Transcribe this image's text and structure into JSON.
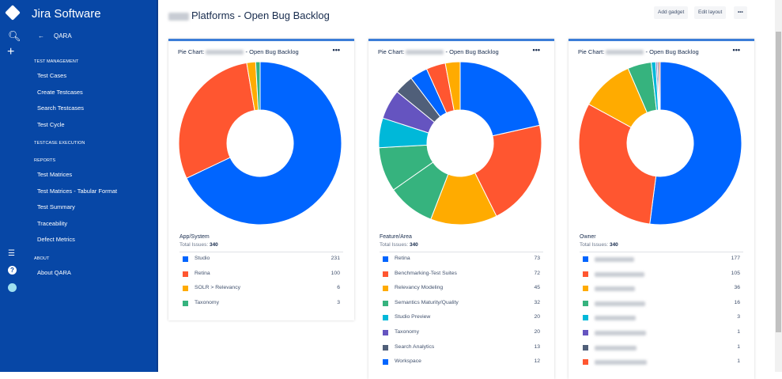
{
  "app": {
    "name": "Jira Software",
    "project": "QARA"
  },
  "sidebar": {
    "sections": [
      {
        "title": "TEST MANAGEMENT",
        "items": [
          "Test Cases",
          "Create Testcases",
          "Search Testcases",
          "Test Cycle"
        ]
      },
      {
        "title": "TESTCASE EXECUTION",
        "items": []
      },
      {
        "title": "REPORTS",
        "items": [
          "Test Matrices",
          "Test Matrices - Tabular Format",
          "Test Summary",
          "Traceability",
          "Defect Metrics"
        ]
      },
      {
        "title": "ABOUT",
        "items": [
          "About QARA"
        ]
      }
    ]
  },
  "page": {
    "title": "Platforms - Open Bug Backlog",
    "add_gadget": "Add gadget",
    "edit_layout": "Edit layout",
    "more": "•••"
  },
  "chart_data": [
    {
      "type": "pie",
      "title_prefix": "Pie Chart:",
      "title_suffix": "- Open Bug Backlog",
      "category": "App/System",
      "total_label": "Total Issues:",
      "total": 340,
      "legend": [
        {
          "label": "Studio",
          "value": 231,
          "color": "#0065ff"
        },
        {
          "label": "Retina",
          "value": 100,
          "color": "#ff5630"
        },
        {
          "label": "SOLR > Relevancy",
          "value": 6,
          "color": "#ffab00"
        },
        {
          "label": "Taxonomy",
          "value": 3,
          "color": "#36b37e"
        }
      ],
      "slices": [
        {
          "value": 231,
          "color": "#0065ff"
        },
        {
          "value": 100,
          "color": "#ff5630"
        },
        {
          "value": 6,
          "color": "#ffab00"
        },
        {
          "value": 3,
          "color": "#36b37e"
        }
      ]
    },
    {
      "type": "pie",
      "title_prefix": "Pie Chart:",
      "title_suffix": "- Open Bug Backlog",
      "category": "Feature/Area",
      "total_label": "Total Issues:",
      "total": 340,
      "legend": [
        {
          "label": "Retina",
          "value": 73,
          "color": "#0065ff"
        },
        {
          "label": "Benchmarking-Test Suites",
          "value": 72,
          "color": "#ff5630"
        },
        {
          "label": "Relevancy Modeling",
          "value": 45,
          "color": "#ffab00"
        },
        {
          "label": "Semantics Maturity/Quality",
          "value": 32,
          "color": "#36b37e"
        },
        {
          "label": "Studio Preview",
          "value": 20,
          "color": "#00b8d9"
        },
        {
          "label": "Taxonomy",
          "value": 20,
          "color": "#6554c0"
        },
        {
          "label": "Search Analytics",
          "value": 13,
          "color": "#505f79"
        },
        {
          "label": "Workspace",
          "value": 12,
          "color": "#0065ff"
        }
      ],
      "slices": [
        {
          "value": 73,
          "color": "#0065ff"
        },
        {
          "value": 72,
          "color": "#ff5630"
        },
        {
          "value": 45,
          "color": "#ffab00"
        },
        {
          "value": 32,
          "color": "#36b37e"
        },
        {
          "value": 30,
          "color": "#36b37e"
        },
        {
          "value": 20,
          "color": "#00b8d9"
        },
        {
          "value": 20,
          "color": "#6554c0"
        },
        {
          "value": 13,
          "color": "#505f79"
        },
        {
          "value": 12,
          "color": "#0065ff"
        },
        {
          "value": 13,
          "color": "#ff5630"
        },
        {
          "value": 10,
          "color": "#ffab00"
        }
      ]
    },
    {
      "type": "pie",
      "title_prefix": "Pie Chart:",
      "title_suffix": "- Open Bug Backlog",
      "category": "Owner",
      "total_label": "Total Issues:",
      "total": 340,
      "legend": [
        {
          "value": 177,
          "color": "#0065ff"
        },
        {
          "value": 105,
          "color": "#ff5630"
        },
        {
          "value": 36,
          "color": "#ffab00"
        },
        {
          "value": 16,
          "color": "#36b37e"
        },
        {
          "value": 3,
          "color": "#00b8d9"
        },
        {
          "value": 1,
          "color": "#6554c0"
        },
        {
          "value": 1,
          "color": "#505f79"
        },
        {
          "value": 1,
          "color": "#ff5630"
        }
      ],
      "slices": [
        {
          "value": 177,
          "color": "#0065ff"
        },
        {
          "value": 105,
          "color": "#ff5630"
        },
        {
          "value": 36,
          "color": "#ffab00"
        },
        {
          "value": 16,
          "color": "#36b37e"
        },
        {
          "value": 3,
          "color": "#00b8d9"
        },
        {
          "value": 1,
          "color": "#6554c0"
        },
        {
          "value": 1,
          "color": "#505f79"
        },
        {
          "value": 1,
          "color": "#ff5630"
        }
      ]
    }
  ]
}
